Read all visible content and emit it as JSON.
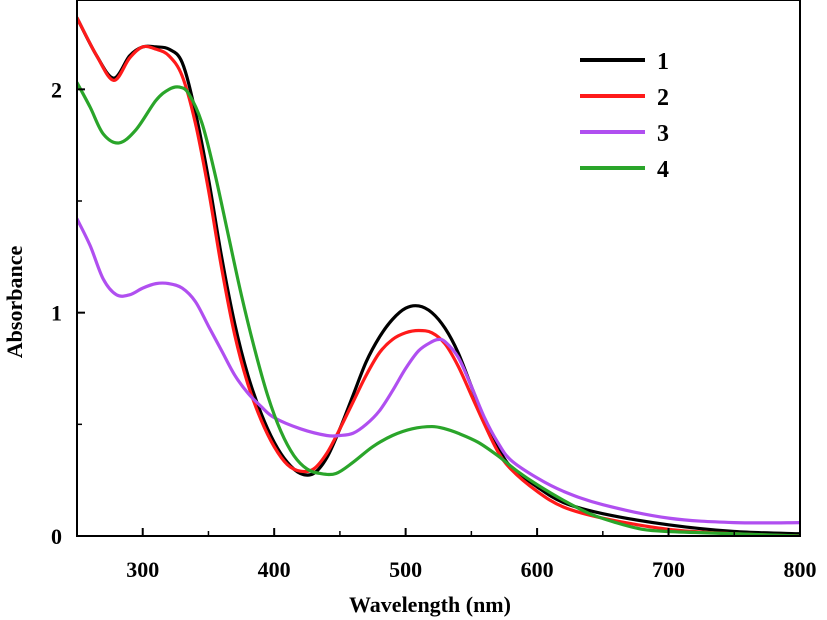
{
  "chart_data": {
    "type": "line",
    "title": "",
    "xlabel": "Wavelength (nm)",
    "ylabel": "Absorbance",
    "xlim": [
      250,
      800
    ],
    "ylim": [
      0,
      2.4
    ],
    "xticks": [
      300,
      400,
      500,
      600,
      700,
      800
    ],
    "xtick_labels": [
      "300",
      "400",
      "500",
      "600",
      "700",
      "800"
    ],
    "yticks": [
      0,
      1,
      2
    ],
    "ytick_labels": [
      "0",
      "1",
      "2"
    ],
    "grid": false,
    "legend_position": "top-right",
    "series": [
      {
        "name": "1",
        "color": "#000000",
        "x": [
          250,
          265,
          278,
          290,
          300,
          310,
          320,
          330,
          340,
          350,
          360,
          370,
          380,
          390,
          400,
          410,
          420,
          430,
          440,
          450,
          460,
          470,
          480,
          490,
          500,
          510,
          520,
          530,
          540,
          550,
          560,
          570,
          580,
          600,
          620,
          650,
          700,
          750,
          800
        ],
        "y": [
          2.32,
          2.15,
          2.05,
          2.15,
          2.19,
          2.19,
          2.18,
          2.12,
          1.9,
          1.6,
          1.25,
          0.95,
          0.72,
          0.55,
          0.42,
          0.33,
          0.28,
          0.28,
          0.35,
          0.48,
          0.63,
          0.78,
          0.89,
          0.97,
          1.02,
          1.03,
          1.0,
          0.93,
          0.82,
          0.67,
          0.52,
          0.4,
          0.31,
          0.22,
          0.15,
          0.1,
          0.05,
          0.02,
          0.01
        ]
      },
      {
        "name": "2",
        "color": "#ff1a1a",
        "x": [
          250,
          265,
          278,
          290,
          300,
          310,
          320,
          330,
          340,
          350,
          360,
          370,
          380,
          390,
          400,
          410,
          420,
          430,
          440,
          450,
          460,
          470,
          480,
          490,
          500,
          510,
          520,
          530,
          540,
          550,
          560,
          570,
          580,
          600,
          620,
          650,
          700,
          750,
          800
        ],
        "y": [
          2.32,
          2.15,
          2.04,
          2.14,
          2.19,
          2.18,
          2.15,
          2.06,
          1.85,
          1.55,
          1.2,
          0.9,
          0.68,
          0.52,
          0.4,
          0.32,
          0.29,
          0.3,
          0.37,
          0.48,
          0.6,
          0.72,
          0.82,
          0.88,
          0.91,
          0.92,
          0.91,
          0.86,
          0.76,
          0.63,
          0.5,
          0.38,
          0.3,
          0.2,
          0.13,
          0.08,
          0.03,
          0.01,
          0.0
        ]
      },
      {
        "name": "3",
        "color": "#b04ff0",
        "x": [
          250,
          260,
          270,
          280,
          290,
          300,
          310,
          320,
          330,
          340,
          350,
          360,
          370,
          380,
          390,
          400,
          420,
          440,
          450,
          460,
          470,
          480,
          490,
          500,
          510,
          520,
          525,
          530,
          540,
          550,
          560,
          570,
          580,
          600,
          620,
          650,
          700,
          750,
          800
        ],
        "y": [
          1.42,
          1.3,
          1.15,
          1.08,
          1.08,
          1.11,
          1.13,
          1.13,
          1.11,
          1.05,
          0.94,
          0.83,
          0.72,
          0.64,
          0.58,
          0.53,
          0.48,
          0.45,
          0.45,
          0.46,
          0.5,
          0.56,
          0.65,
          0.75,
          0.83,
          0.87,
          0.88,
          0.87,
          0.8,
          0.67,
          0.53,
          0.42,
          0.34,
          0.26,
          0.2,
          0.14,
          0.08,
          0.06,
          0.06
        ]
      },
      {
        "name": "4",
        "color": "#2aa52a",
        "x": [
          250,
          260,
          270,
          282,
          295,
          310,
          320,
          328,
          335,
          345,
          355,
          365,
          375,
          385,
          395,
          405,
          415,
          425,
          435,
          447,
          460,
          475,
          490,
          505,
          520,
          530,
          540,
          555,
          570,
          585,
          600,
          620,
          640,
          660,
          680,
          700,
          750,
          800
        ],
        "y": [
          2.03,
          1.92,
          1.8,
          1.76,
          1.82,
          1.95,
          2.0,
          2.01,
          1.98,
          1.85,
          1.62,
          1.35,
          1.08,
          0.84,
          0.63,
          0.47,
          0.36,
          0.3,
          0.28,
          0.28,
          0.33,
          0.4,
          0.45,
          0.48,
          0.49,
          0.48,
          0.46,
          0.42,
          0.36,
          0.29,
          0.23,
          0.16,
          0.1,
          0.06,
          0.03,
          0.02,
          0.01,
          0.0
        ]
      }
    ]
  }
}
